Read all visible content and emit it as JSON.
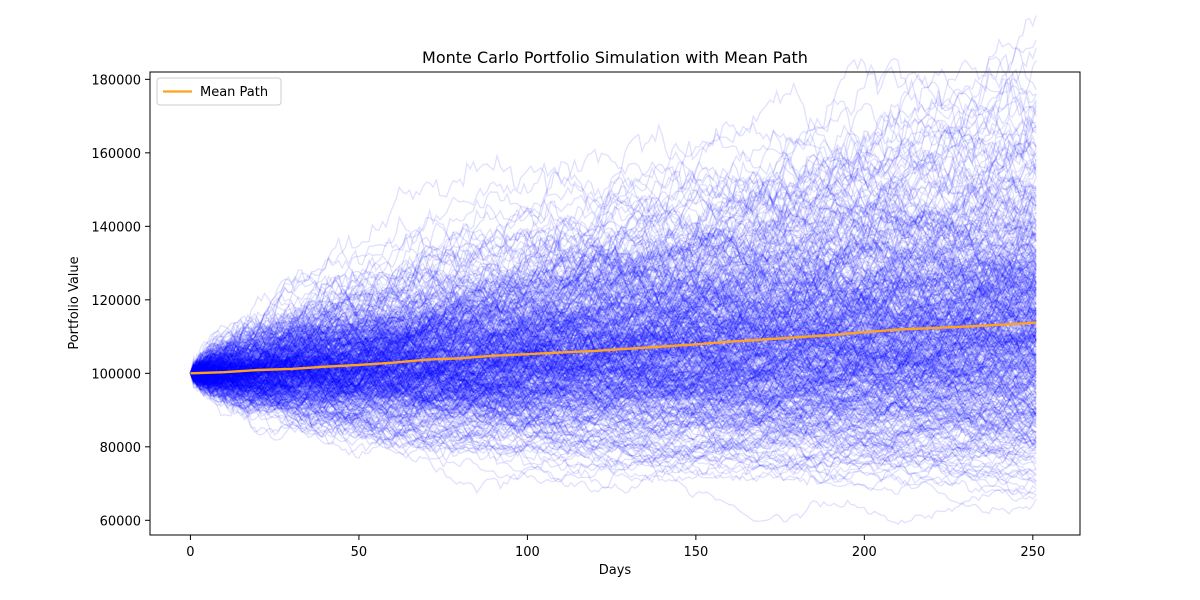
{
  "chart_data": {
    "type": "line",
    "title": "Monte Carlo Portfolio Simulation with Mean Path",
    "xlabel": "Days",
    "ylabel": "Portfolio Value",
    "xlim": [
      -12,
      264
    ],
    "ylim": [
      56000,
      182000
    ],
    "xticks": [
      0,
      50,
      100,
      150,
      200,
      250
    ],
    "yticks": [
      60000,
      80000,
      100000,
      120000,
      140000,
      160000,
      180000
    ],
    "xtick_labels": [
      "0",
      "50",
      "100",
      "150",
      "200",
      "250"
    ],
    "ytick_labels": [
      "60000",
      "80000",
      "100000",
      "120000",
      "140000",
      "160000",
      "180000"
    ],
    "grid": false,
    "legend": {
      "position": "top-left",
      "entries": [
        {
          "label": "Mean Path",
          "color": "#ffa21f"
        }
      ]
    },
    "simulation": {
      "num_paths": 500,
      "days": 252,
      "initial_value": 100000,
      "color": "#0000ff",
      "opacity": 0.12
    },
    "series": [
      {
        "name": "Mean Path",
        "color": "#ffa21f",
        "x": [
          0,
          10,
          20,
          30,
          40,
          50,
          60,
          70,
          80,
          90,
          100,
          110,
          120,
          130,
          140,
          150,
          160,
          170,
          180,
          190,
          200,
          210,
          220,
          230,
          240,
          251
        ],
        "y": [
          100000,
          100300,
          100900,
          101200,
          101800,
          102300,
          102900,
          103700,
          104100,
          104800,
          105200,
          105700,
          106100,
          106700,
          107300,
          107900,
          108600,
          109200,
          109800,
          110400,
          111200,
          111900,
          112300,
          112700,
          113200,
          113800
        ]
      }
    ]
  }
}
